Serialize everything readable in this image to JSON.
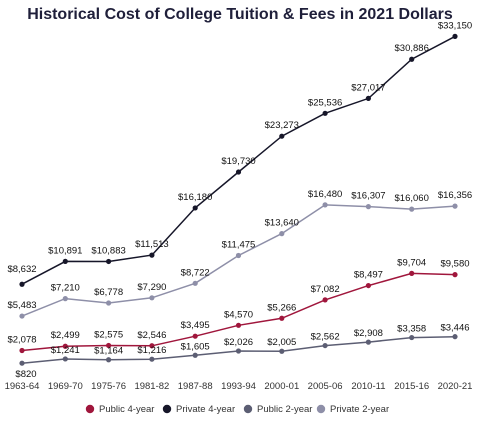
{
  "chart_data": {
    "type": "line",
    "title": "Historical Cost of College Tuition & Fees in 2021 Dollars",
    "xlabel": "",
    "ylabel": "",
    "categories": [
      "1963-64",
      "1969-70",
      "1975-76",
      "1981-82",
      "1987-88",
      "1993-94",
      "2000-01",
      "2005-06",
      "2010-11",
      "2015-16",
      "2020-21"
    ],
    "ylim": [
      0,
      34000
    ],
    "grid": false,
    "legend_position": "bottom",
    "series": [
      {
        "name": "Public 4-year",
        "color": "#a0163c",
        "values": [
          2078,
          2499,
          2575,
          2546,
          3495,
          4570,
          5266,
          7082,
          8497,
          9704,
          9580
        ],
        "labels": [
          "$2,078",
          "$2,499",
          "$2,575",
          "$2,546",
          "$3,495",
          "$4,570",
          "$5,266",
          "$7,082",
          "$8,497",
          "$9,704",
          "$9,580"
        ]
      },
      {
        "name": "Private 4-year",
        "color": "#161629",
        "values": [
          8632,
          10891,
          10883,
          11513,
          16180,
          19730,
          23273,
          25536,
          27017,
          30886,
          33150
        ],
        "labels": [
          "$8,632",
          "$10,891",
          "$10,883",
          "$11,513",
          "$16,180",
          "$19,730",
          "$23,273",
          "$25,536",
          "$27,017",
          "$30,886",
          "$33,150"
        ]
      },
      {
        "name": "Public 2-year",
        "color": "#5c5e73",
        "values": [
          820,
          1241,
          1164,
          1216,
          1605,
          2026,
          2005,
          2562,
          2908,
          3358,
          3446
        ],
        "labels": [
          "$820",
          "$1,241",
          "$1,164",
          "$1,216",
          "$1,605",
          "$2,026",
          "$2,005",
          "$2,562",
          "$2,908",
          "$3,358",
          "$3,446"
        ]
      },
      {
        "name": "Private 2-year",
        "color": "#8e8fa8",
        "values": [
          5483,
          7210,
          6778,
          7290,
          8722,
          11475,
          13640,
          16480,
          16307,
          16060,
          16356
        ],
        "labels": [
          "$5,483",
          "$7,210",
          "$6,778",
          "$7,290",
          "$8,722",
          "$11,475",
          "$13,640",
          "$16,480",
          "$16,307",
          "$16,060",
          "$16,356"
        ]
      }
    ]
  }
}
